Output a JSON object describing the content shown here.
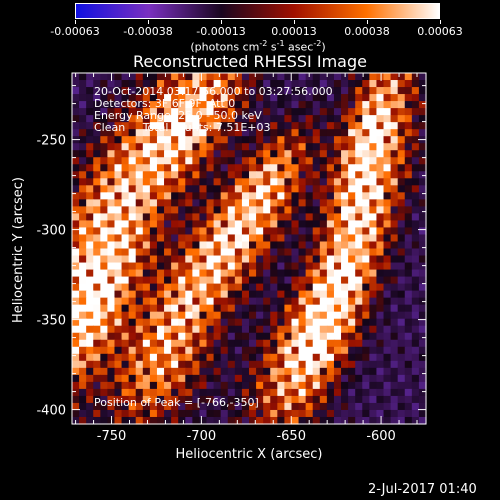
{
  "colorbar": {
    "tick_labels": [
      "-0.00063",
      "-0.00038",
      "-0.00013",
      "0.00013",
      "0.00038",
      "0.00063"
    ],
    "units": "(photons cm",
    "units_exp1": "-2",
    "units_mid": " s",
    "units_exp2": "-1",
    "units_mid2": " asec",
    "units_exp3": "-2",
    "units_end": ")",
    "colors": [
      "#1010e0",
      "#7a30c0",
      "#1a0620",
      "#a01000",
      "#ff7000",
      "#ffffff"
    ]
  },
  "info": {
    "line1": "20-Oct-2014 03:17:56.000 to 03:27:56.000",
    "line2": "Detectors: 3F 6F 9F  Att 0",
    "line3": "Energy Range: 25.0 - 50.0 keV",
    "line4": "Clean     Total counts: 7.51E+03",
    "peak": "Position of Peak = [-766,-350]"
  },
  "footer": {
    "timestamp": "2-Jul-2017 01:40"
  },
  "chart_data": {
    "type": "heatmap",
    "title": "Reconstructed RHESSI Image",
    "xlabel": "Heliocentric X (arcsec)",
    "ylabel": "Heliocentric Y (arcsec)",
    "xlim": [
      -772,
      -575
    ],
    "ylim": [
      -408,
      -213
    ],
    "xticks": [
      -750,
      -700,
      -650,
      -600
    ],
    "yticks": [
      -250,
      -300,
      -350,
      -400
    ],
    "zlim": [
      -0.00063,
      0.00063
    ],
    "peak": [
      -766,
      -350
    ],
    "grid": false
  }
}
